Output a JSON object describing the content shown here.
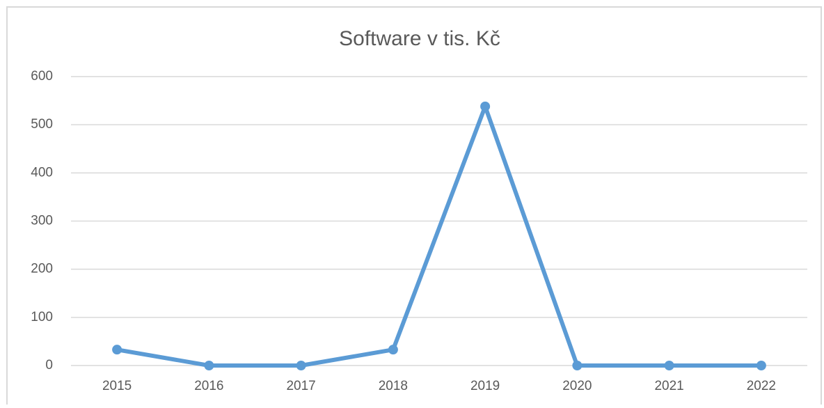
{
  "chart_data": {
    "type": "line",
    "title": "Software v tis. Kč",
    "categories": [
      "2015",
      "2016",
      "2017",
      "2018",
      "2019",
      "2020",
      "2021",
      "2022"
    ],
    "series": [
      {
        "name": "Software v tis. Kč",
        "color": "#5b9bd5",
        "values": [
          33,
          0,
          0,
          33,
          538,
          0,
          0,
          0
        ]
      }
    ],
    "ylim": [
      0,
      600
    ],
    "yticks": [
      0,
      100,
      200,
      300,
      400,
      500,
      600
    ],
    "grid": true
  }
}
